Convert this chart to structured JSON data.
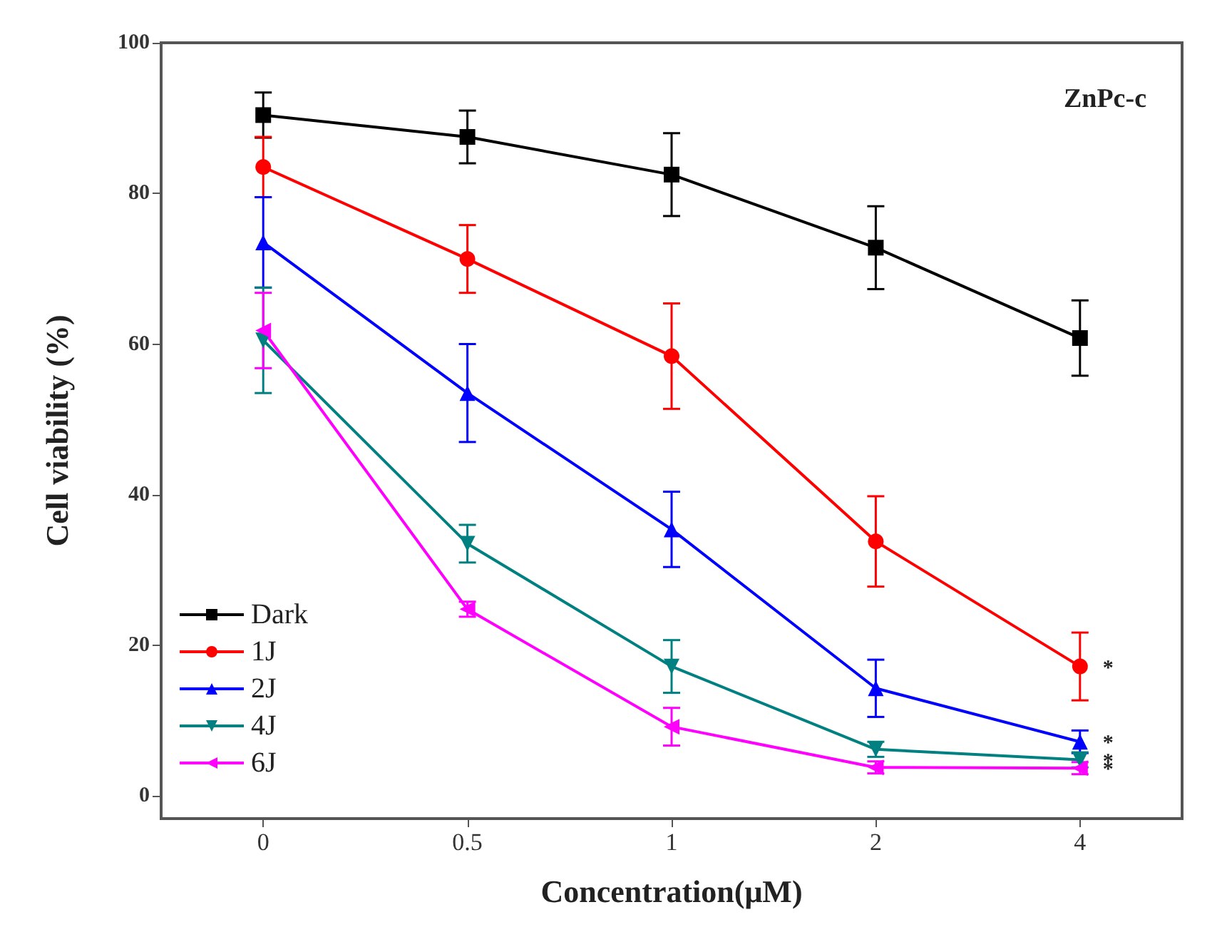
{
  "chart_data": {
    "type": "line",
    "xlabel": "Concentration(μM)",
    "ylabel": "Cell viability (%)",
    "categories": [
      "0",
      "0.5",
      "1",
      "2",
      "4"
    ],
    "ylim": [
      -3,
      100
    ],
    "yticks": [
      0,
      20,
      40,
      60,
      80,
      100
    ],
    "legend": "bottom left",
    "line_style": "solid",
    "series": [
      {
        "name": "Dark",
        "color": "#000000",
        "marker": "square",
        "values": [
          90.4,
          87.5,
          82.5,
          72.8,
          60.8
        ],
        "errors": [
          3,
          3.5,
          5.5,
          5.5,
          5
        ]
      },
      {
        "name": "1J",
        "color": "#ff0000",
        "marker": "circle",
        "values": [
          83.5,
          71.3,
          58.4,
          33.8,
          17.2
        ],
        "errors": [
          4,
          4.5,
          7,
          6,
          4.5
        ]
      },
      {
        "name": "2J",
        "color": "#0000ff",
        "marker": "triangle",
        "values": [
          73.5,
          53.5,
          35.4,
          14.3,
          7.2
        ],
        "errors": [
          6,
          6.5,
          5,
          3.8,
          1.5
        ]
      },
      {
        "name": "4J",
        "color": "#008080",
        "marker": "triangle-down",
        "values": [
          60.5,
          33.5,
          17.2,
          6.2,
          4.8
        ],
        "errors": [
          7,
          2.5,
          3.5,
          1,
          1
        ]
      },
      {
        "name": "6J",
        "color": "#ff00ff",
        "marker": "triangle-left",
        "values": [
          61.8,
          24.8,
          9.2,
          3.8,
          3.7
        ],
        "errors": [
          5,
          1,
          2.5,
          0.8,
          0.8
        ]
      }
    ],
    "annotations": [
      "ZnPc-c",
      {
        "text": "*",
        "x": "4",
        "y": 17.2
      },
      {
        "text": "*",
        "x": "4",
        "y": 7.2
      },
      {
        "text": "*",
        "x": "4",
        "y": 4.8
      },
      {
        "text": "*",
        "x": "4",
        "y": 3.7
      }
    ]
  }
}
